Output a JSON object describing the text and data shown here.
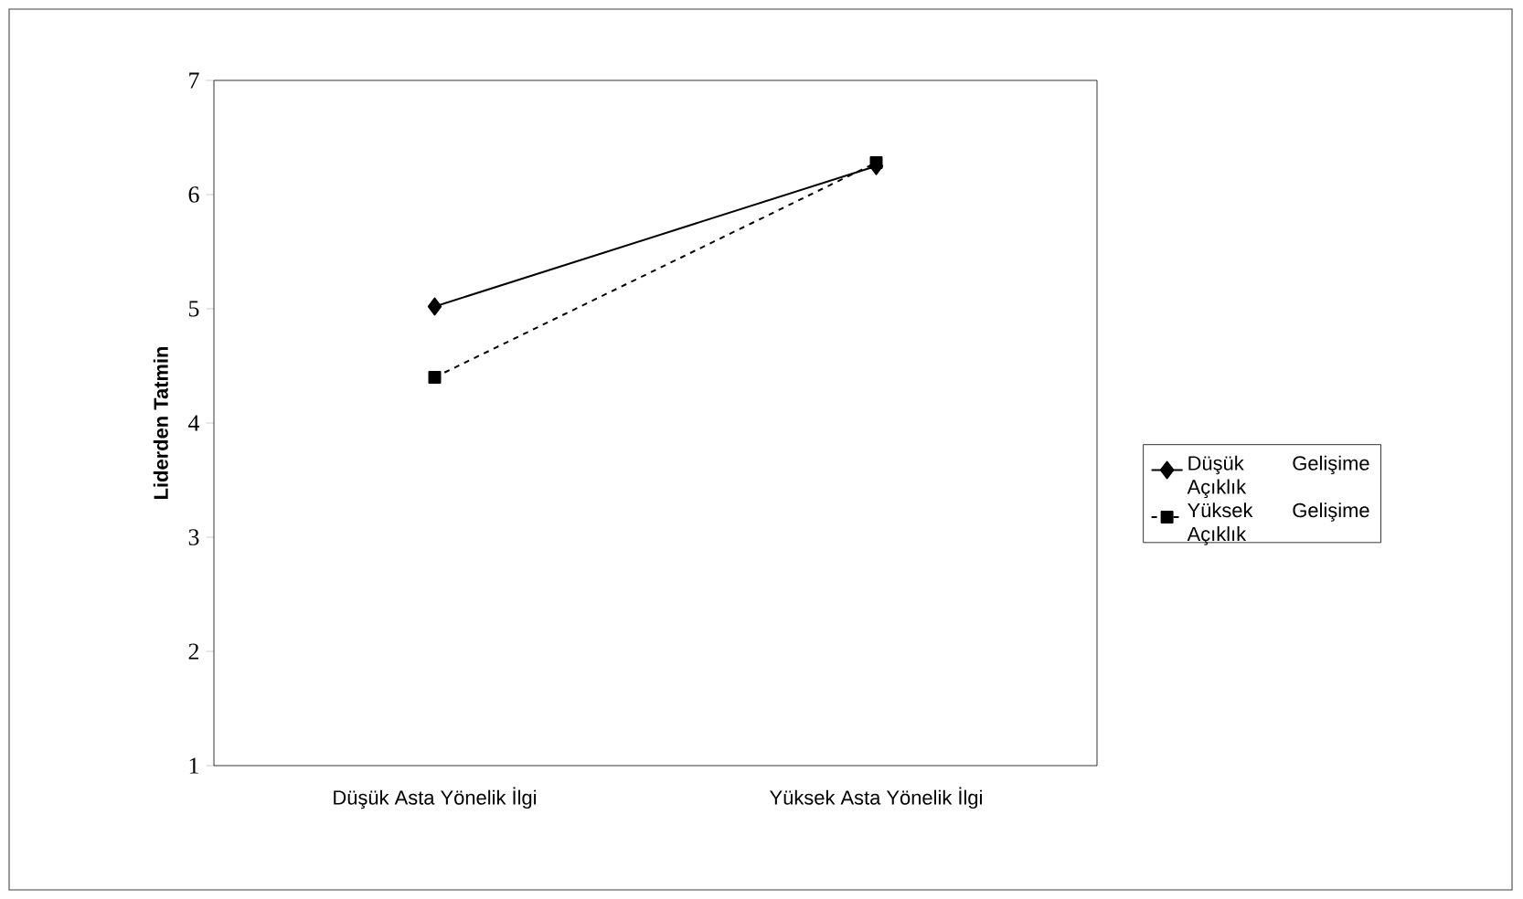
{
  "chart_data": {
    "type": "line",
    "ylabel": "Liderden Tatmin",
    "categories": [
      "Düşük Asta Yönelik İlgi",
      "Yüksek Asta Yönelik İlgi"
    ],
    "series": [
      {
        "name": "Düşük Gelişime Açıklık",
        "color": "#000000",
        "values": [
          5.02,
          6.25
        ],
        "marker": "diamond",
        "line_style": "solid"
      },
      {
        "name": "Yüksek Gelişime Açıklık",
        "color": "#000000",
        "values": [
          4.4,
          6.28
        ],
        "marker": "square",
        "line_style": "dashed"
      }
    ],
    "ylim": [
      1,
      7
    ],
    "yticks": [
      1,
      2,
      3,
      4,
      5,
      6,
      7
    ],
    "grid": false,
    "legend": "right"
  }
}
